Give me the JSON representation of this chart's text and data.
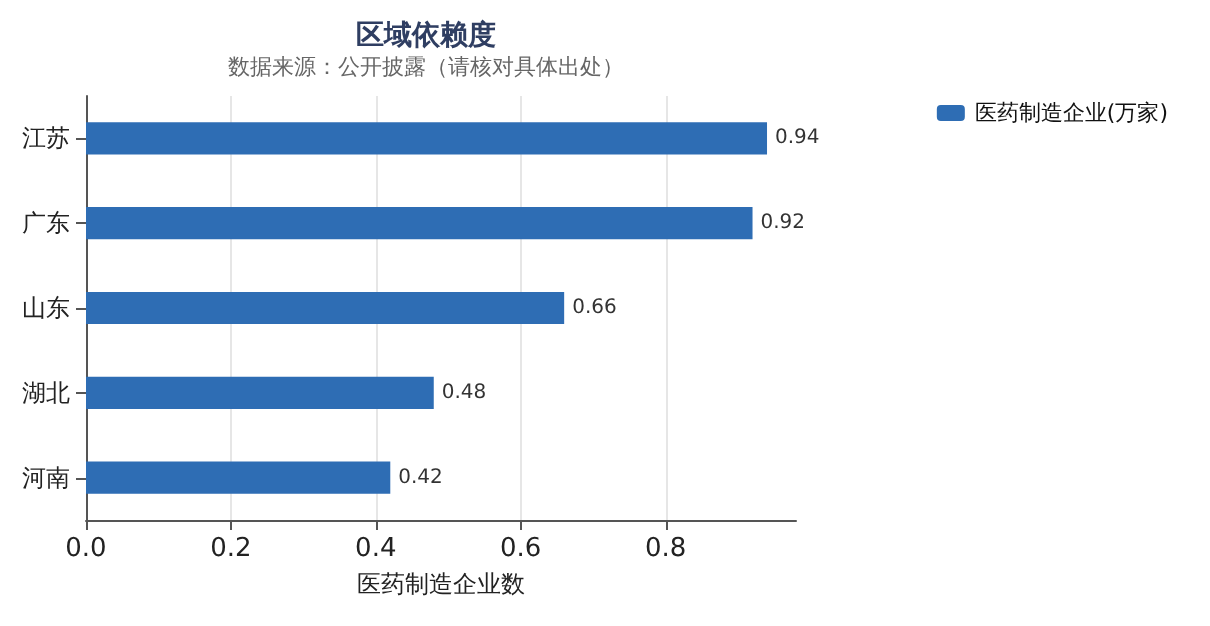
{
  "chart_data": {
    "type": "bar",
    "orientation": "horizontal",
    "title": "区域依赖度",
    "subtitle": "数据来源：公开披露（请核对具体出处）",
    "xlabel": "医药制造企业数",
    "categories": [
      "江苏",
      "广东",
      "山东",
      "湖北",
      "河南"
    ],
    "series": [
      {
        "name": "医药制造企业(万家)",
        "color": "#2e6db4",
        "values": [
          0.94,
          0.92,
          0.66,
          0.48,
          0.42
        ]
      }
    ],
    "xlim": [
      0,
      0.98
    ],
    "xticks": [
      {
        "value": 0,
        "label": "0.0"
      },
      {
        "value": 0.2,
        "label": "0.2"
      },
      {
        "value": 0.4,
        "label": "0.4"
      },
      {
        "value": 0.6,
        "label": "0.6"
      },
      {
        "value": 0.8,
        "label": "0.8"
      }
    ],
    "grid": "x",
    "legend": "top right",
    "data_labels": true
  }
}
